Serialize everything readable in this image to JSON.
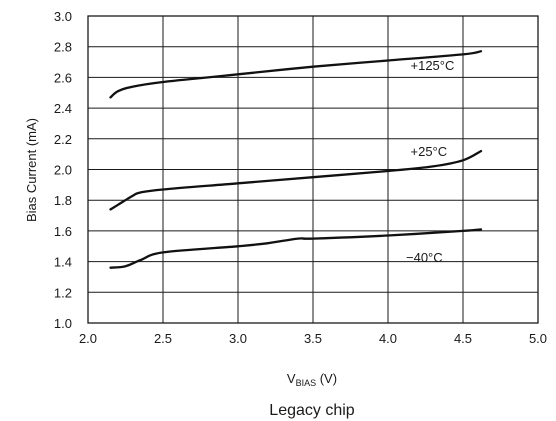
{
  "chart_data": {
    "type": "line",
    "title": "",
    "caption": "Legacy chip",
    "xlabel": {
      "main": "V",
      "sub": "BIAS",
      "unit": " (V)"
    },
    "ylabel": "Bias Current (mA)",
    "xlim": [
      2.0,
      5.0
    ],
    "ylim": [
      1.0,
      3.0
    ],
    "xticks": [
      "2.0",
      "2.5",
      "3.0",
      "3.5",
      "4.0",
      "4.5",
      "5.0"
    ],
    "yticks": [
      "1.0",
      "1.2",
      "1.4",
      "1.6",
      "1.8",
      "2.0",
      "2.2",
      "2.4",
      "2.6",
      "2.8",
      "3.0"
    ],
    "grid": true,
    "legend": "none",
    "series": [
      {
        "name": "+125°C",
        "x": [
          2.15,
          2.2,
          2.3,
          2.5,
          2.8,
          3.0,
          3.5,
          4.0,
          4.5,
          4.62
        ],
        "y": [
          2.47,
          2.51,
          2.54,
          2.57,
          2.6,
          2.62,
          2.67,
          2.71,
          2.75,
          2.77
        ]
      },
      {
        "name": "+25°C",
        "x": [
          2.15,
          2.2,
          2.3,
          2.35,
          2.5,
          3.0,
          3.5,
          4.0,
          4.3,
          4.5,
          4.62
        ],
        "y": [
          1.74,
          1.77,
          1.83,
          1.85,
          1.87,
          1.91,
          1.95,
          1.99,
          2.02,
          2.06,
          2.12
        ]
      },
      {
        "name": "−40°C",
        "x": [
          2.15,
          2.25,
          2.35,
          2.5,
          3.0,
          3.2,
          3.4,
          3.5,
          4.0,
          4.5,
          4.62
        ],
        "y": [
          1.36,
          1.37,
          1.41,
          1.46,
          1.5,
          1.52,
          1.55,
          1.55,
          1.57,
          1.6,
          1.61
        ]
      }
    ],
    "series_labels": [
      {
        "text": "+125°C",
        "x": 4.15,
        "y": 2.68
      },
      {
        "text": "+25°C",
        "x": 4.15,
        "y": 2.12
      },
      {
        "text": "−40°C",
        "x": 4.12,
        "y": 1.43
      }
    ]
  }
}
